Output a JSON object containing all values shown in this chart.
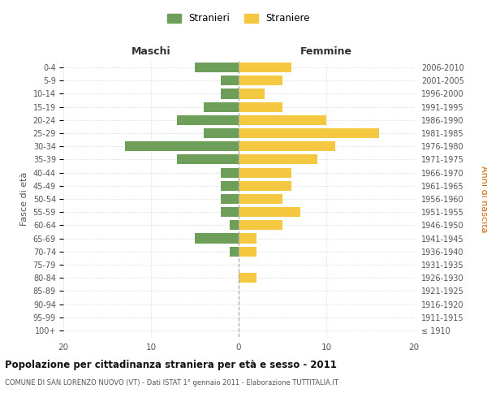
{
  "age_groups": [
    "100+",
    "95-99",
    "90-94",
    "85-89",
    "80-84",
    "75-79",
    "70-74",
    "65-69",
    "60-64",
    "55-59",
    "50-54",
    "45-49",
    "40-44",
    "35-39",
    "30-34",
    "25-29",
    "20-24",
    "15-19",
    "10-14",
    "5-9",
    "0-4"
  ],
  "birth_years": [
    "≤ 1910",
    "1911-1915",
    "1916-1920",
    "1921-1925",
    "1926-1930",
    "1931-1935",
    "1936-1940",
    "1941-1945",
    "1946-1950",
    "1951-1955",
    "1956-1960",
    "1961-1965",
    "1966-1970",
    "1971-1975",
    "1976-1980",
    "1981-1985",
    "1986-1990",
    "1991-1995",
    "1996-2000",
    "2001-2005",
    "2006-2010"
  ],
  "males": [
    0,
    0,
    0,
    0,
    0,
    0,
    1,
    5,
    1,
    2,
    2,
    2,
    2,
    7,
    13,
    4,
    7,
    4,
    2,
    2,
    5
  ],
  "females": [
    0,
    0,
    0,
    0,
    2,
    0,
    2,
    2,
    5,
    7,
    5,
    6,
    6,
    9,
    11,
    16,
    10,
    5,
    3,
    5,
    6
  ],
  "male_color": "#6d9e5a",
  "female_color": "#f5c842",
  "background_color": "#ffffff",
  "grid_color": "#d0d0d0",
  "title": "Popolazione per cittadinanza straniera per età e sesso - 2011",
  "subtitle": "COMUNE DI SAN LORENZO NUOVO (VT) - Dati ISTAT 1° gennaio 2011 - Elaborazione TUTTITALIA.IT",
  "left_header": "Maschi",
  "right_header": "Femmine",
  "left_ylabel": "Fasce di età",
  "right_ylabel": "Anni di nascita",
  "legend_stranieri": "Stranieri",
  "legend_straniere": "Straniere",
  "xlim": 20,
  "bar_height": 0.75
}
